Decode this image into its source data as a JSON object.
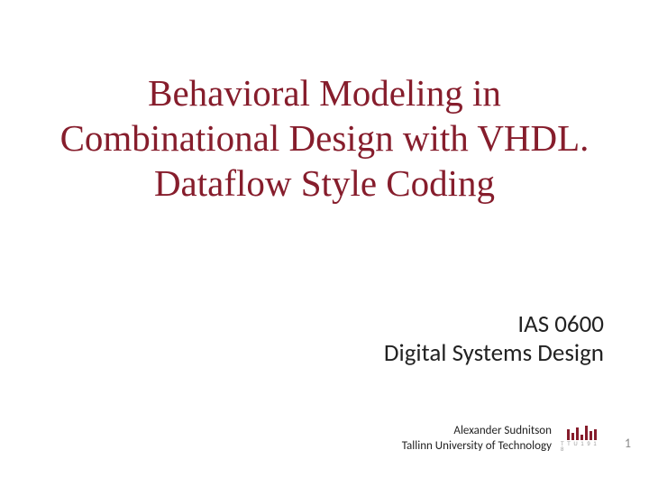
{
  "slide": {
    "title_line1": "Behavioral Modeling in",
    "title_line2": "Combinational Design  with VHDL.",
    "title_line3": "Dataflow Style Coding",
    "title_color": "#861d2c",
    "title_fontsize": 41,
    "subtitle_line1": "IAS 0600",
    "subtitle_line2": "Digital Systems Design",
    "subtitle_fontsize": 27,
    "author_line1": "Alexander Sudnitson",
    "author_line2": "Tallinn University of Technology",
    "author_fontsize": 13,
    "logo_text": "T T U 1 9 1 8",
    "logo_bar_color": "#861d2c",
    "page_number": "1",
    "background_color": "#ffffff"
  }
}
